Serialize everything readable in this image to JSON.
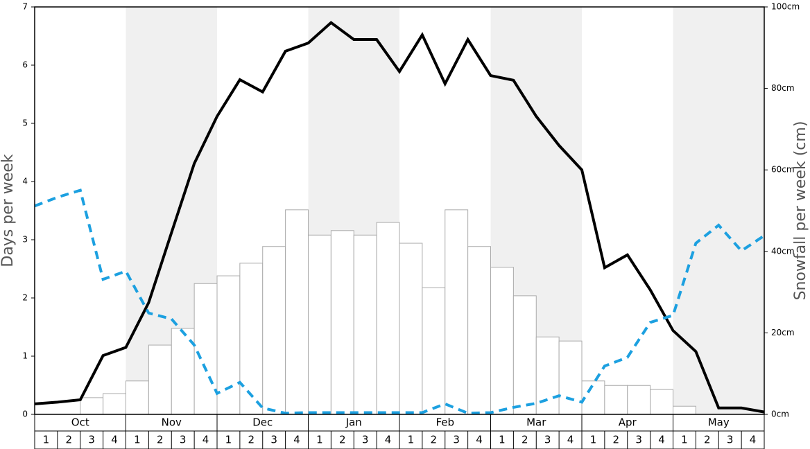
{
  "chart_data": {
    "type": "weekly",
    "y_label": "Days per week",
    "y2_label": "Snowfall per week (cm)",
    "months": [
      "Oct",
      "Nov",
      "Dec",
      "Jan",
      "Feb",
      "Mar",
      "Apr",
      "May"
    ],
    "weeks": [
      1,
      2,
      3,
      4
    ],
    "ylim": [
      0,
      7
    ],
    "yticks": [
      0,
      1,
      2,
      3,
      4,
      5,
      6,
      7
    ],
    "y2lim": [
      0,
      100
    ],
    "y2ticks": [
      {
        "value": 0,
        "label": "0cm"
      },
      {
        "value": 20,
        "label": "20cm"
      },
      {
        "value": 40,
        "label": "40cm"
      },
      {
        "value": 60,
        "label": "60cm"
      },
      {
        "value": 80,
        "label": "80cm"
      },
      {
        "value": 100,
        "label": "100cm"
      }
    ],
    "series": [
      {
        "type": "bar",
        "axis": "y2",
        "color": "#ffffff",
        "values": [
          0,
          0,
          4.1,
          5.1,
          8.2,
          17,
          21.1,
          32.1,
          34,
          37.1,
          41.2,
          50.2,
          44,
          45.1,
          44,
          47.1,
          42,
          31.1,
          50.2,
          41.2,
          36.1,
          29.1,
          19,
          18,
          8.2,
          7.1,
          7.1,
          6.1,
          2,
          0,
          0,
          0
        ]
      },
      {
        "type": "line",
        "color": "#000000",
        "dashed": false,
        "values": [
          0.18,
          0.21,
          0.25,
          1.01,
          1.15,
          1.92,
          3.12,
          4.31,
          5.12,
          5.75,
          5.54,
          6.24,
          6.38,
          6.73,
          6.44,
          6.44,
          5.89,
          6.52,
          5.68,
          6.44,
          5.82,
          5.74,
          5.12,
          4.62,
          4.2,
          2.52,
          2.74,
          2.14,
          1.44,
          1.08,
          0.11,
          0.11,
          0.04
        ]
      },
      {
        "type": "line",
        "color": "#1ca0e0",
        "dashed": true,
        "values": [
          3.58,
          3.73,
          3.85,
          2.32,
          2.46,
          1.74,
          1.64,
          1.19,
          0.36,
          0.55,
          0.11,
          0.02,
          0.03,
          0.03,
          0.03,
          0.03,
          0.03,
          0.03,
          0.18,
          0.02,
          0.03,
          0.12,
          0.19,
          0.32,
          0.21,
          0.83,
          0.98,
          1.58,
          1.7,
          2.94,
          3.25,
          2.81,
          3.07
        ]
      }
    ]
  }
}
